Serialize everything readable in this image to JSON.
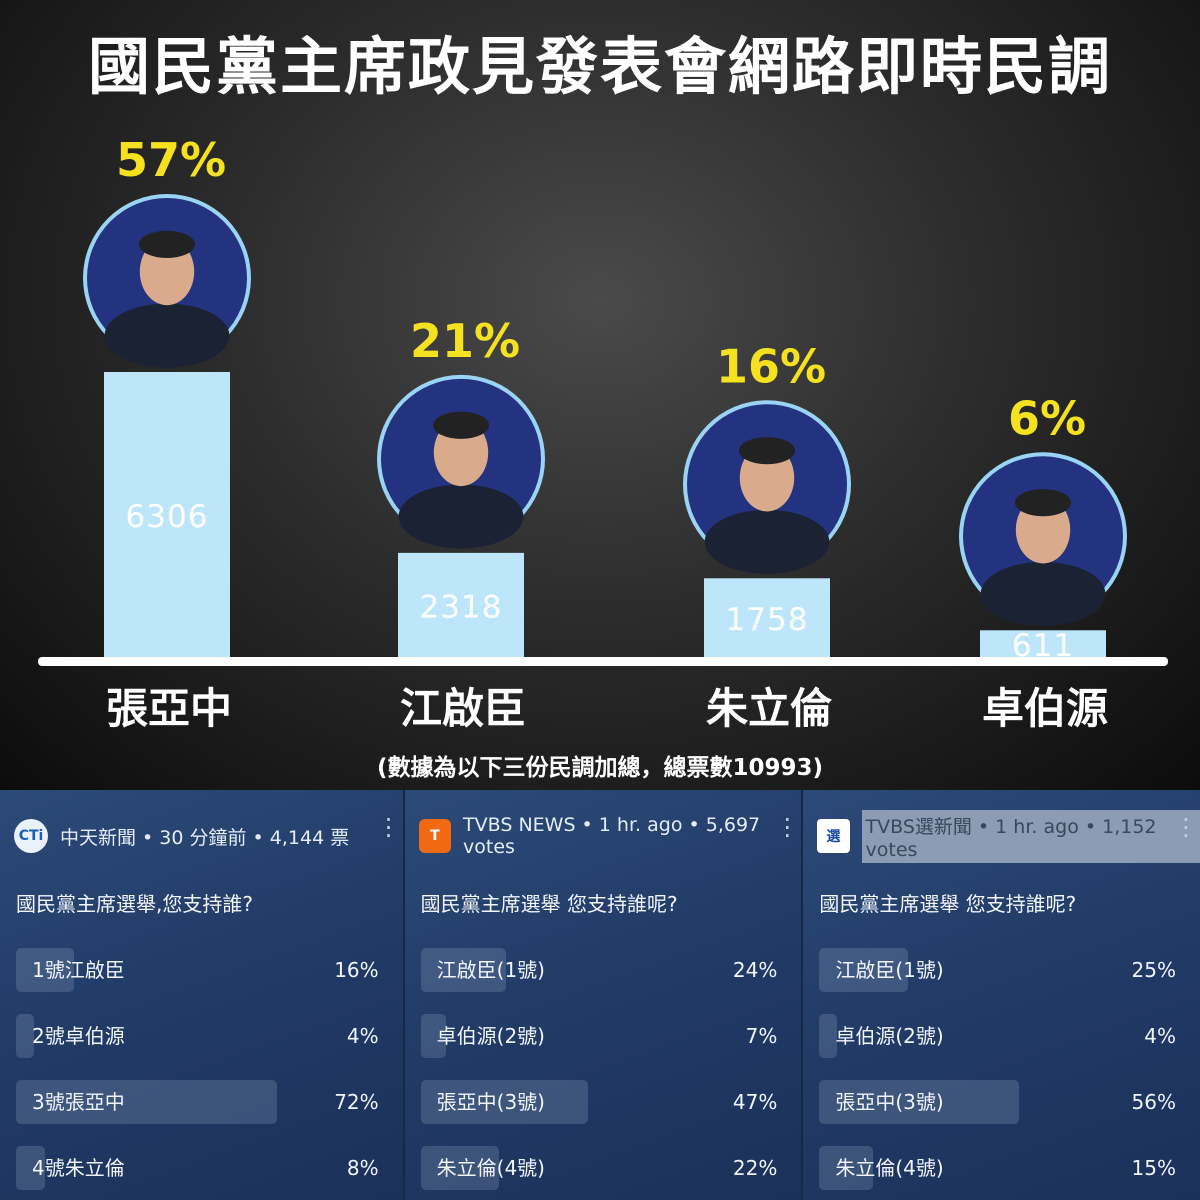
{
  "title": "國民黨主席政見發表會網路即時民調",
  "note": "(數據為以下三份民調加總，總票數10993)",
  "chart_data": {
    "type": "bar",
    "categories": [
      "張亞中",
      "江啟臣",
      "朱立倫",
      "卓伯源"
    ],
    "values": [
      6306,
      2318,
      1758,
      611
    ],
    "percent_labels": [
      "57%",
      "21%",
      "16%",
      "6%"
    ],
    "value_labels": [
      "6306",
      "2318",
      "1758",
      "611"
    ],
    "colors": {
      "bar": "#bde6fb",
      "percent": "#f5e11f",
      "avatar_ring": "#9ad4f5",
      "baseline": "#ffffff"
    }
  },
  "polls": [
    {
      "source": "中天新聞 • 30 分鐘前 • 4,144 票",
      "logo": "CTi",
      "question": "國民黨主席選舉,您支持誰?",
      "options": [
        {
          "label": "1號江啟臣",
          "pct": "16%",
          "share": 0.16
        },
        {
          "label": "2號卓伯源",
          "pct": "4%",
          "share": 0.04
        },
        {
          "label": "3號張亞中",
          "pct": "72%",
          "share": 0.72
        },
        {
          "label": "4號朱立倫",
          "pct": "8%",
          "share": 0.08
        }
      ]
    },
    {
      "source": "TVBS NEWS • 1 hr. ago • 5,697 votes",
      "logo": "T",
      "question": "國民黨主席選舉 您支持誰呢?",
      "options": [
        {
          "label": "江啟臣(1號)",
          "pct": "24%",
          "share": 0.24
        },
        {
          "label": "卓伯源(2號)",
          "pct": "7%",
          "share": 0.07
        },
        {
          "label": "張亞中(3號)",
          "pct": "47%",
          "share": 0.47
        },
        {
          "label": "朱立倫(4號)",
          "pct": "22%",
          "share": 0.22
        }
      ]
    },
    {
      "source": "TVBS選新聞 • 1 hr. ago • 1,152 votes",
      "logo": "選",
      "question": "國民黨主席選舉 您支持誰呢?",
      "options": [
        {
          "label": "江啟臣(1號)",
          "pct": "25%",
          "share": 0.25
        },
        {
          "label": "卓伯源(2號)",
          "pct": "4%",
          "share": 0.04
        },
        {
          "label": "張亞中(3號)",
          "pct": "56%",
          "share": 0.56
        },
        {
          "label": "朱立倫(4號)",
          "pct": "15%",
          "share": 0.15
        }
      ]
    }
  ]
}
